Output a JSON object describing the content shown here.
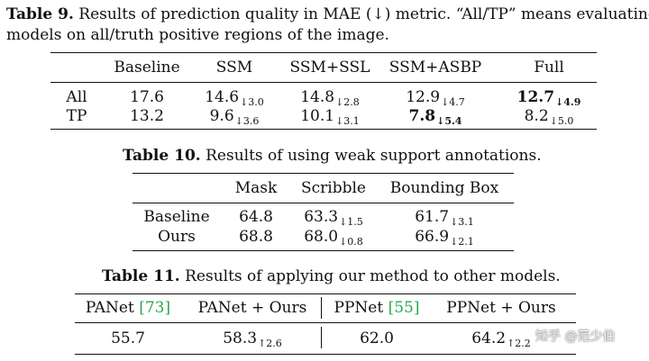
{
  "table9": {
    "caption_label": "Table 9.",
    "caption_line1": " Results of prediction quality in MAE (↓) metric. “All/TP” means evaluating",
    "caption_line2": "models on all/truth positive regions of the image.",
    "headers": [
      "",
      "Baseline",
      "SSM",
      "SSM+SSL",
      "SSM+ASBP",
      "Full"
    ],
    "rows": [
      {
        "label": "All",
        "cells": [
          {
            "v": "17.6",
            "d": ""
          },
          {
            "v": "14.6",
            "d": "↓3.0"
          },
          {
            "v": "14.8",
            "d": "↓2.8"
          },
          {
            "v": "12.9",
            "d": "↓4.7"
          },
          {
            "v": "12.7",
            "d": "↓4.9",
            "bold": true
          }
        ]
      },
      {
        "label": "TP",
        "cells": [
          {
            "v": "13.2",
            "d": ""
          },
          {
            "v": "9.6",
            "d": "↓3.6"
          },
          {
            "v": "10.1",
            "d": "↓3.1"
          },
          {
            "v": "7.8",
            "d": "↓5.4",
            "bold": true
          },
          {
            "v": "8.2",
            "d": "↓5.0"
          }
        ]
      }
    ]
  },
  "table10": {
    "caption_label": "Table 10.",
    "caption_text": " Results of using weak support annotations.",
    "headers": [
      "",
      "Mask",
      "Scribble",
      "Bounding Box"
    ],
    "rows": [
      {
        "label": "Baseline",
        "cells": [
          {
            "v": "64.8",
            "d": ""
          },
          {
            "v": "63.3",
            "d": "↓1.5"
          },
          {
            "v": "61.7",
            "d": "↓3.1"
          }
        ]
      },
      {
        "label": "Ours",
        "cells": [
          {
            "v": "68.8",
            "d": ""
          },
          {
            "v": "68.0",
            "d": "↓0.8"
          },
          {
            "v": "66.9",
            "d": "↓2.1"
          }
        ]
      }
    ]
  },
  "table11": {
    "caption_label": "Table 11.",
    "caption_text": " Results of applying our method to other models.",
    "headers": [
      {
        "text": "PANet ",
        "cite": "[73]"
      },
      {
        "text": "PANet + Ours",
        "cite": ""
      },
      {
        "text": "PPNet ",
        "cite": "[55]"
      },
      {
        "text": "PPNet + Ours",
        "cite": ""
      }
    ],
    "row": [
      {
        "v": "55.7",
        "d": ""
      },
      {
        "v": "58.3",
        "d": "↑2.6"
      },
      {
        "v": "62.0",
        "d": ""
      },
      {
        "v": "64.2",
        "d": "↑2.2"
      }
    ]
  },
  "watermark": "知乎 @范少伯",
  "colors": {
    "citation": "#2ba84a"
  }
}
